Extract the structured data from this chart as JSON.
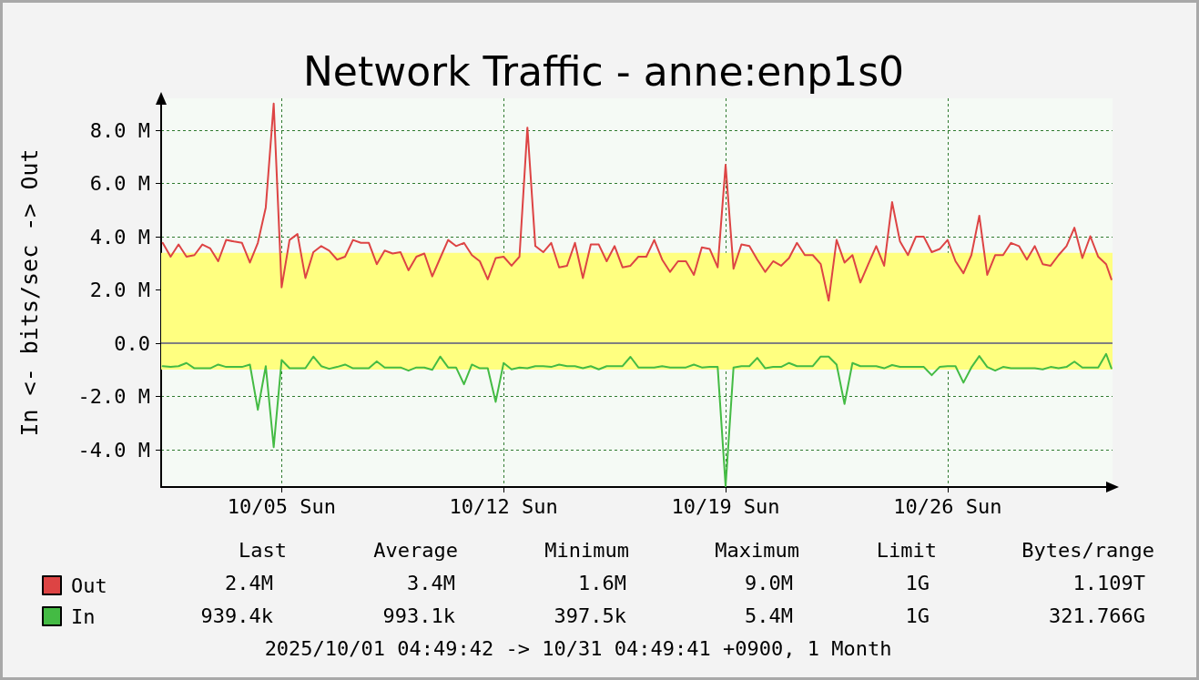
{
  "chart_data": {
    "type": "line",
    "title": "Network Traffic - anne:enp1s0",
    "ylabel": "In <- bits/sec -> Out",
    "x": [
      "2025-10-01T06:00",
      "2025-10-01T12:00",
      "2025-10-01T18:00",
      "2025-10-02T00:00",
      "2025-10-02T06:00",
      "2025-10-02T12:00",
      "2025-10-02T18:00",
      "2025-10-03T00:00",
      "2025-10-03T06:00",
      "2025-10-03T12:00",
      "2025-10-03T18:00",
      "2025-10-04T00:00",
      "2025-10-04T06:00",
      "2025-10-04T12:00",
      "2025-10-04T18:00",
      "2025-10-05T00:00",
      "2025-10-05T06:00",
      "2025-10-05T12:00",
      "2025-10-05T18:00",
      "2025-10-06T00:00",
      "2025-10-06T06:00",
      "2025-10-06T12:00",
      "2025-10-06T18:00",
      "2025-10-07T00:00",
      "2025-10-07T06:00",
      "2025-10-07T12:00",
      "2025-10-07T18:00",
      "2025-10-08T00:00",
      "2025-10-08T06:00",
      "2025-10-08T12:00",
      "2025-10-08T18:00",
      "2025-10-09T00:00",
      "2025-10-09T06:00",
      "2025-10-09T12:00",
      "2025-10-09T18:00",
      "2025-10-10T00:00",
      "2025-10-10T06:00",
      "2025-10-10T12:00",
      "2025-10-10T18:00",
      "2025-10-11T00:00",
      "2025-10-11T06:00",
      "2025-10-11T12:00",
      "2025-10-11T18:00",
      "2025-10-12T00:00",
      "2025-10-12T06:00",
      "2025-10-12T12:00",
      "2025-10-12T18:00",
      "2025-10-13T00:00",
      "2025-10-13T06:00",
      "2025-10-13T12:00",
      "2025-10-13T18:00",
      "2025-10-14T00:00",
      "2025-10-14T06:00",
      "2025-10-14T12:00",
      "2025-10-14T18:00",
      "2025-10-15T00:00",
      "2025-10-15T06:00",
      "2025-10-15T12:00",
      "2025-10-15T18:00",
      "2025-10-16T00:00",
      "2025-10-16T06:00",
      "2025-10-16T12:00",
      "2025-10-16T18:00",
      "2025-10-17T00:00",
      "2025-10-17T06:00",
      "2025-10-17T12:00",
      "2025-10-17T18:00",
      "2025-10-18T00:00",
      "2025-10-18T06:00",
      "2025-10-18T12:00",
      "2025-10-18T18:00",
      "2025-10-19T00:00",
      "2025-10-19T06:00",
      "2025-10-19T12:00",
      "2025-10-19T18:00",
      "2025-10-20T00:00",
      "2025-10-20T06:00",
      "2025-10-20T12:00",
      "2025-10-20T18:00",
      "2025-10-21T00:00",
      "2025-10-21T06:00",
      "2025-10-21T12:00",
      "2025-10-21T18:00",
      "2025-10-22T00:00",
      "2025-10-22T06:00",
      "2025-10-22T12:00",
      "2025-10-22T18:00",
      "2025-10-23T00:00",
      "2025-10-23T06:00",
      "2025-10-23T12:00",
      "2025-10-23T18:00",
      "2025-10-24T00:00",
      "2025-10-24T06:00",
      "2025-10-24T12:00",
      "2025-10-24T18:00",
      "2025-10-25T00:00",
      "2025-10-25T06:00",
      "2025-10-25T12:00",
      "2025-10-25T18:00",
      "2025-10-26T00:00",
      "2025-10-26T06:00",
      "2025-10-26T12:00",
      "2025-10-26T18:00",
      "2025-10-27T00:00",
      "2025-10-27T06:00",
      "2025-10-27T12:00",
      "2025-10-27T18:00",
      "2025-10-28T00:00",
      "2025-10-28T06:00",
      "2025-10-28T12:00",
      "2025-10-28T18:00",
      "2025-10-29T00:00",
      "2025-10-29T06:00",
      "2025-10-29T12:00",
      "2025-10-29T18:00",
      "2025-10-30T00:00",
      "2025-10-30T06:00",
      "2025-10-30T12:00",
      "2025-10-30T18:00",
      "2025-10-31T00:00",
      "2025-10-31T04:00"
    ],
    "series": [
      {
        "name": "Out",
        "color": "#dd4444",
        "values": [
          3.77,
          3.25,
          3.71,
          3.25,
          3.31,
          3.71,
          3.56,
          3.08,
          3.88,
          3.82,
          3.77,
          3.03,
          3.77,
          5.1,
          9.0,
          2.1,
          3.88,
          4.1,
          2.45,
          3.42,
          3.65,
          3.48,
          3.14,
          3.25,
          3.88,
          3.77,
          3.77,
          2.97,
          3.48,
          3.37,
          3.42,
          2.74,
          3.25,
          3.37,
          2.51,
          3.2,
          3.88,
          3.65,
          3.77,
          3.31,
          3.08,
          2.4,
          3.2,
          3.25,
          2.91,
          3.25,
          8.1,
          3.65,
          3.42,
          3.77,
          2.85,
          2.91,
          3.77,
          2.45,
          3.71,
          3.71,
          3.08,
          3.65,
          2.85,
          2.91,
          3.25,
          3.25,
          3.88,
          3.14,
          2.68,
          3.08,
          3.08,
          2.57,
          3.6,
          3.54,
          2.85,
          6.7,
          2.8,
          3.71,
          3.65,
          3.14,
          2.68,
          3.08,
          2.91,
          3.2,
          3.77,
          3.31,
          3.31,
          2.97,
          1.6,
          3.88,
          3.03,
          3.31,
          2.28,
          2.97,
          3.65,
          2.91,
          5.3,
          3.82,
          3.31,
          4.0,
          4.0,
          3.42,
          3.54,
          3.88,
          3.08,
          2.63,
          3.31,
          4.79,
          2.57,
          3.31,
          3.31,
          3.77,
          3.65,
          3.14,
          3.65,
          2.97,
          2.91,
          3.31,
          3.65,
          4.34,
          3.2,
          4.02,
          3.25,
          2.97,
          2.4
        ]
      },
      {
        "name": "In",
        "color": "#44bb44",
        "values": [
          -0.86,
          -0.89,
          -0.86,
          -0.74,
          -0.94,
          -0.94,
          -0.94,
          -0.8,
          -0.89,
          -0.89,
          -0.89,
          -0.8,
          -2.5,
          -0.86,
          -3.9,
          -0.63,
          -0.94,
          -0.94,
          -0.94,
          -0.5,
          -0.86,
          -0.96,
          -0.89,
          -0.8,
          -0.94,
          -0.94,
          -0.94,
          -0.68,
          -0.91,
          -0.91,
          -0.91,
          -1.03,
          -0.91,
          -0.91,
          -1.0,
          -0.5,
          -0.91,
          -0.91,
          -1.54,
          -0.8,
          -0.94,
          -0.94,
          -2.2,
          -0.74,
          -0.98,
          -0.91,
          -0.94,
          -0.86,
          -0.86,
          -0.89,
          -0.8,
          -0.86,
          -0.86,
          -0.94,
          -0.86,
          -0.98,
          -0.86,
          -0.86,
          -0.86,
          -0.51,
          -0.91,
          -0.91,
          -0.91,
          -0.86,
          -0.91,
          -0.91,
          -0.91,
          -0.8,
          -0.91,
          -0.89,
          -0.89,
          -5.37,
          -0.91,
          -0.86,
          -0.86,
          -0.55,
          -0.94,
          -0.89,
          -0.89,
          -0.74,
          -0.86,
          -0.86,
          -0.86,
          -0.5,
          -0.5,
          -0.8,
          -2.28,
          -0.74,
          -0.86,
          -0.86,
          -0.86,
          -0.94,
          -0.82,
          -0.89,
          -0.89,
          -0.89,
          -0.89,
          -1.2,
          -0.89,
          -0.86,
          -0.86,
          -1.48,
          -0.91,
          -0.48,
          -0.89,
          -1.03,
          -0.89,
          -0.94,
          -0.94,
          -0.94,
          -0.94,
          -0.98,
          -0.89,
          -0.94,
          -0.89,
          -0.69,
          -0.91,
          -0.91,
          -0.91,
          -0.4,
          -0.94
        ]
      }
    ],
    "xlim": [
      "2025-10-01T04:49",
      "2025-10-31T04:49"
    ],
    "xticks": [
      {
        "value": "2025-10-05",
        "label": "10/05 Sun"
      },
      {
        "value": "2025-10-12",
        "label": "10/12 Sun"
      },
      {
        "value": "2025-10-19",
        "label": "10/19 Sun"
      },
      {
        "value": "2025-10-26",
        "label": "10/26 Sun"
      }
    ],
    "ylim": [
      -5.4,
      9.2
    ],
    "yticks": [
      {
        "value": -4,
        "label": "-4.0 M"
      },
      {
        "value": -2,
        "label": "-2.0 M"
      },
      {
        "value": 0,
        "label": "0.0"
      },
      {
        "value": 2,
        "label": "2.0 M"
      },
      {
        "value": 4,
        "label": "4.0 M"
      },
      {
        "value": 6,
        "label": "6.0 M"
      },
      {
        "value": 8,
        "label": "8.0 M"
      }
    ],
    "bands": [
      {
        "axis": "y",
        "from": -0.99,
        "to": 3.4,
        "color": "#ffff80"
      }
    ],
    "ref_lines": [
      {
        "axis": "y",
        "value": 0,
        "color": "#808080"
      }
    ],
    "grid": true,
    "legend": "bottom left",
    "marker": "none",
    "line_style": "solid",
    "annotations": [
      "Last",
      "Average",
      "Minimum",
      "Maximum",
      "Limit",
      "Bytes/range",
      "2.4M",
      "3.4M",
      "1.6M",
      "9.0M",
      "1G",
      "1.109T",
      "939.4k",
      "993.1k",
      "397.5k",
      "5.4M",
      "1G",
      "321.766G",
      "2025/10/01 04:49:42 -> 10/31 04:49:41 +0900, 1 Month"
    ]
  }
}
